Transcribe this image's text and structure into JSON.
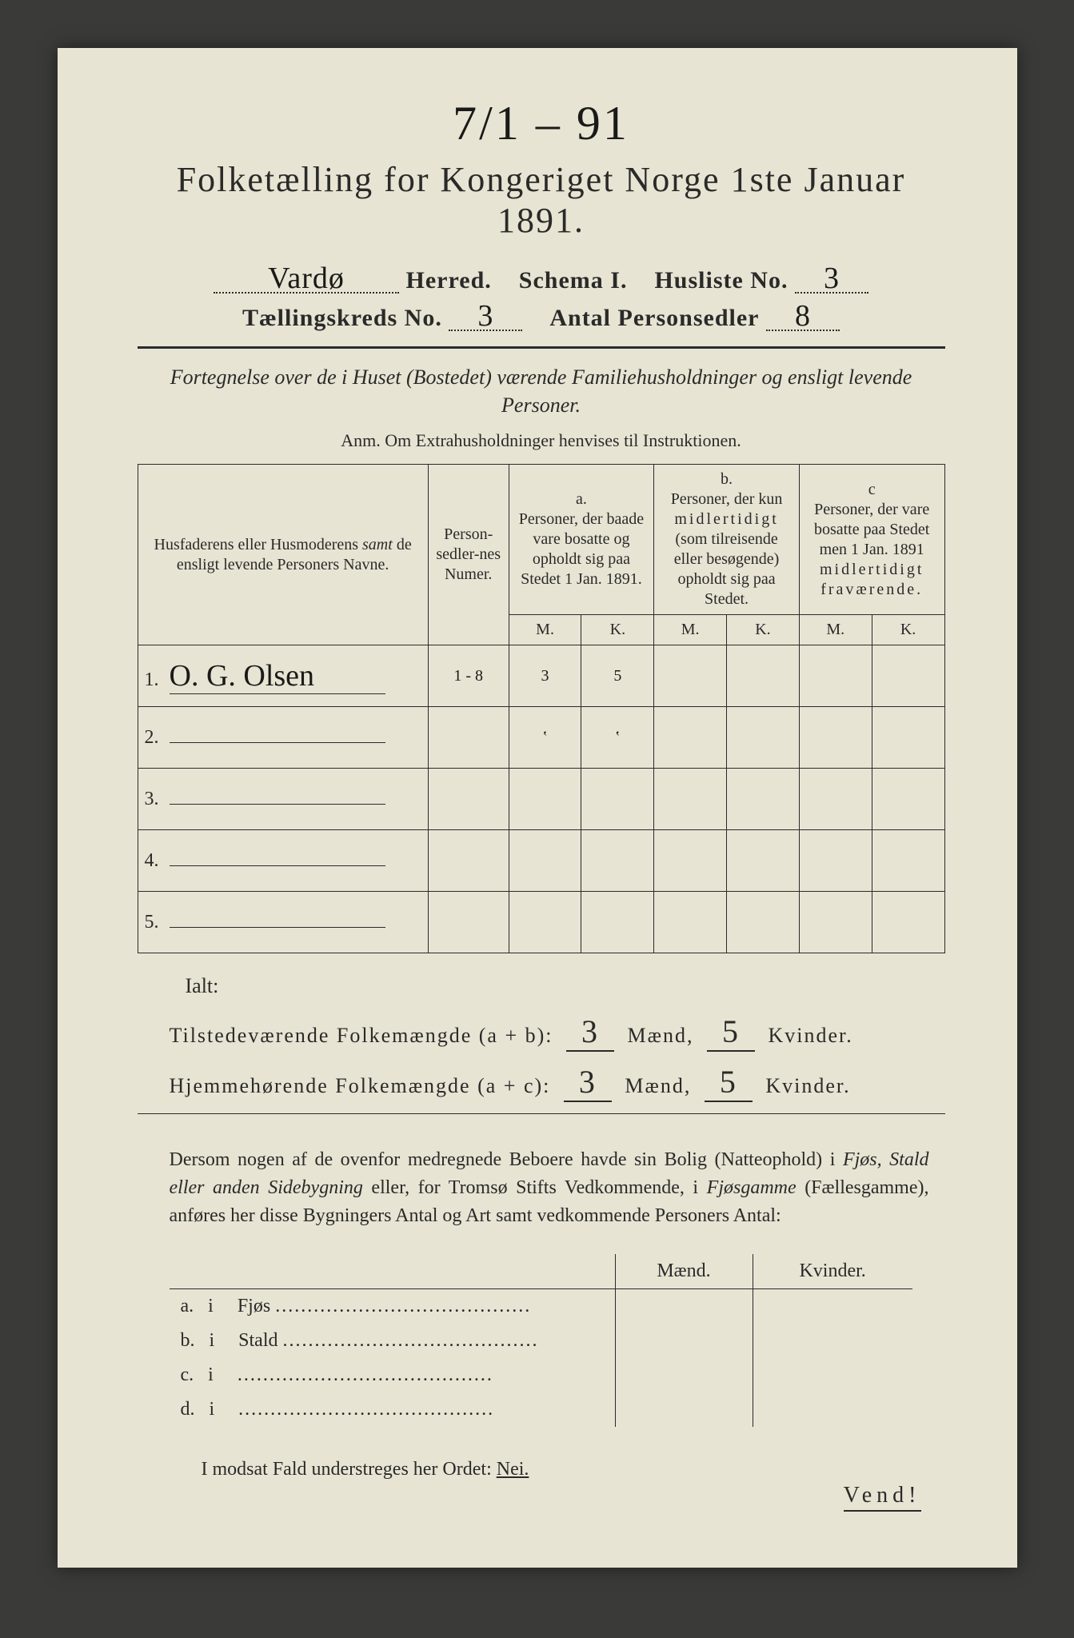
{
  "background_color": "#e8e4d4",
  "text_color": "#2a2a28",
  "handwriting_color": "#1a1a18",
  "handwritten_top": "7/1 – 91",
  "title": "Folketælling for Kongeriget Norge 1ste Januar 1891.",
  "herred_value": "Vardø",
  "herred_label": "Herred.",
  "schema_label": "Schema I.",
  "husliste_label": "Husliste No.",
  "husliste_value": "3",
  "kreds_label": "Tællingskreds No.",
  "kreds_value": "3",
  "antal_label": "Antal Personsedler",
  "antal_value": "8",
  "intro": "Fortegnelse over de i Huset (Bostedet) værende Familiehusholdninger og ensligt levende Personer.",
  "anm": "Anm. Om Extrahusholdninger henvises til Instruktionen.",
  "table": {
    "col_name": "Husfaderens eller Husmoderens samt de ensligt levende Personers Navne.",
    "col_name_italic_word": "samt",
    "col_num": "Person-sedler-nes Numer.",
    "col_a_top": "a.",
    "col_a": "Personer, der baade vare bosatte og opholdt sig paa Stedet 1 Jan. 1891.",
    "col_b_top": "b.",
    "col_b": "Personer, der kun midlertidigt (som tilreisende eller besøgende) opholdt sig paa Stedet.",
    "col_c_top": "c",
    "col_c": "Personer, der vare bosatte paa Stedet men 1 Jan. 1891 midlertidigt fraværende.",
    "m": "M.",
    "k": "K.",
    "rows": [
      {
        "n": "1.",
        "name": "O. G. Olsen",
        "num": "1 - 8",
        "a_m": "3",
        "a_k": "5",
        "b_m": "",
        "b_k": "",
        "c_m": "",
        "c_k": ""
      },
      {
        "n": "2.",
        "name": "",
        "num": "",
        "a_m": "ʽ",
        "a_k": "ʽ",
        "b_m": "",
        "b_k": "",
        "c_m": "",
        "c_k": ""
      },
      {
        "n": "3.",
        "name": "",
        "num": "",
        "a_m": "",
        "a_k": "",
        "b_m": "",
        "b_k": "",
        "c_m": "",
        "c_k": ""
      },
      {
        "n": "4.",
        "name": "",
        "num": "",
        "a_m": "",
        "a_k": "",
        "b_m": "",
        "b_k": "",
        "c_m": "",
        "c_k": ""
      },
      {
        "n": "5.",
        "name": "",
        "num": "",
        "a_m": "",
        "a_k": "",
        "b_m": "",
        "b_k": "",
        "c_m": "",
        "c_k": ""
      }
    ]
  },
  "ialt": "Ialt:",
  "sum1_label": "Tilstedeværende Folkemængde (a + b):",
  "sum2_label": "Hjemmehørende Folkemængde (a + c):",
  "sum_m": "Mænd,",
  "sum_k": "Kvinder.",
  "sum1_m": "3",
  "sum1_k": "5",
  "sum2_m": "3",
  "sum2_k": "5",
  "para": "Dersom nogen af de ovenfor medregnede Beboere havde sin Bolig (Natteophold) i Fjøs, Stald eller anden Sidebygning eller, for Tromsø Stifts Vedkommende, i Fjøsgamme (Fællesgamme), anføres her disse Bygningers Antal og Art samt vedkommende Personers Antal:",
  "para_italics": [
    "Fjøs, Stald eller anden Sidebygning",
    "Fjøsgamme"
  ],
  "byg_header_m": "Mænd.",
  "byg_header_k": "Kvinder.",
  "byg_rows": [
    {
      "a": "a.",
      "i": "i",
      "label": "Fjøs"
    },
    {
      "a": "b.",
      "i": "i",
      "label": "Stald"
    },
    {
      "a": "c.",
      "i": "i",
      "label": ""
    },
    {
      "a": "d.",
      "i": "i",
      "label": ""
    }
  ],
  "nei_line_prefix": "I modsat Fald understreges her Ordet:",
  "nei": "Nei.",
  "vend": "Vend!"
}
